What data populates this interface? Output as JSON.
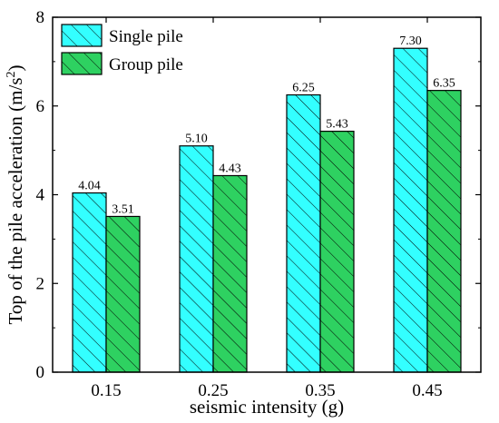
{
  "chart_data": {
    "type": "bar",
    "categories": [
      "0.15",
      "0.25",
      "0.35",
      "0.45"
    ],
    "series": [
      {
        "name": "Single pile",
        "values": [
          4.04,
          5.1,
          6.25,
          7.3
        ],
        "value_labels": [
          "4.04",
          "5.10",
          "6.25",
          "7.30"
        ],
        "color": "#33ffff",
        "hatch": "diagonal"
      },
      {
        "name": "Group pile",
        "values": [
          3.51,
          4.43,
          5.43,
          6.35
        ],
        "value_labels": [
          "3.51",
          "4.43",
          "5.43",
          "6.35"
        ],
        "color": "#2ed161",
        "hatch": "diagonal"
      }
    ],
    "xlabel": "seismic intensity (g)",
    "ylabel": "Top of the pile acceleration (m/s²)",
    "ylim": [
      0,
      8
    ],
    "yticks": [
      0,
      2,
      4,
      6,
      8
    ],
    "ytick_labels": [
      "0",
      "2",
      "4",
      "6",
      "8"
    ],
    "legend_position": "top-left",
    "grid": false
  }
}
